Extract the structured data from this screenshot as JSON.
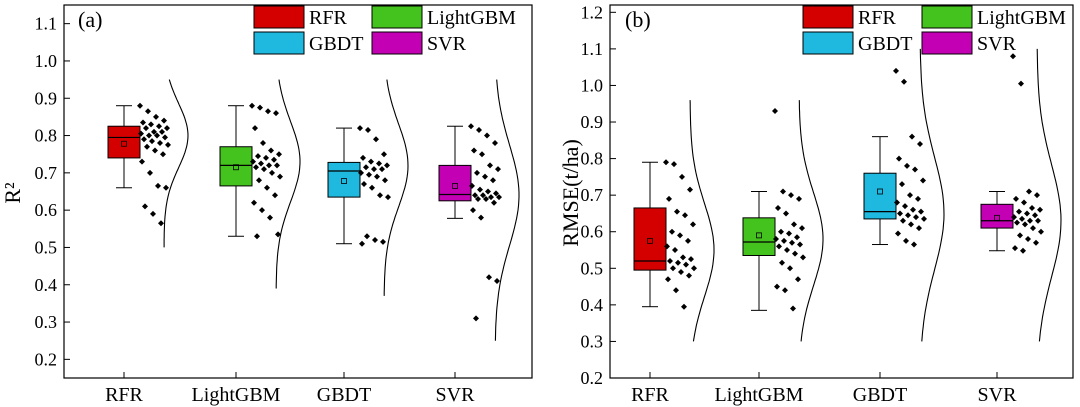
{
  "colors": {
    "RFR": "#d40000",
    "LightGBM": "#44c21d",
    "GBDT": "#1fb8de",
    "SVR": "#c400b4"
  },
  "legend": [
    "RFR",
    "LightGBM",
    "GBDT",
    "SVR"
  ],
  "chart_data": [
    {
      "type": "box",
      "panel_label": "(a)",
      "ylabel": "R²",
      "ylim": [
        0.15,
        1.15
      ],
      "yticks": [
        0.2,
        0.3,
        0.4,
        0.5,
        0.6,
        0.7,
        0.8,
        0.9,
        1.0,
        1.1
      ],
      "categories": [
        "RFR",
        "LightGBM",
        "GBDT",
        "SVR"
      ],
      "legend_placement": "top-right",
      "boxes": [
        {
          "name": "RFR",
          "whisker_low": 0.66,
          "q1": 0.74,
          "median": 0.795,
          "q3": 0.825,
          "whisker_high": 0.88,
          "mean": 0.778,
          "points": [
            0.88,
            0.865,
            0.85,
            0.84,
            0.835,
            0.83,
            0.825,
            0.82,
            0.82,
            0.81,
            0.81,
            0.805,
            0.8,
            0.8,
            0.795,
            0.79,
            0.785,
            0.78,
            0.775,
            0.77,
            0.76,
            0.75,
            0.73,
            0.7,
            0.665,
            0.66,
            0.61,
            0.59,
            0.565
          ],
          "density": {
            "low": 0.5,
            "high": 0.95,
            "mode": 0.8
          }
        },
        {
          "name": "LightGBM",
          "whisker_low": 0.53,
          "q1": 0.665,
          "median": 0.72,
          "q3": 0.77,
          "whisker_high": 0.88,
          "mean": 0.715,
          "points": [
            0.88,
            0.875,
            0.865,
            0.86,
            0.82,
            0.78,
            0.76,
            0.75,
            0.745,
            0.74,
            0.735,
            0.73,
            0.725,
            0.72,
            0.72,
            0.715,
            0.71,
            0.7,
            0.69,
            0.68,
            0.66,
            0.64,
            0.62,
            0.6,
            0.58,
            0.535,
            0.53
          ],
          "density": {
            "low": 0.39,
            "high": 0.95,
            "mode": 0.73
          }
        },
        {
          "name": "GBDT",
          "whisker_low": 0.51,
          "q1": 0.635,
          "median": 0.705,
          "q3": 0.728,
          "whisker_high": 0.82,
          "mean": 0.678,
          "points": [
            0.82,
            0.815,
            0.79,
            0.75,
            0.74,
            0.73,
            0.725,
            0.72,
            0.715,
            0.71,
            0.71,
            0.7,
            0.695,
            0.69,
            0.68,
            0.67,
            0.66,
            0.64,
            0.635,
            0.53,
            0.52,
            0.515,
            0.51
          ],
          "density": {
            "low": 0.37,
            "high": 0.95,
            "mode": 0.72
          }
        },
        {
          "name": "SVR",
          "whisker_low": 0.578,
          "q1": 0.625,
          "median": 0.642,
          "q3": 0.72,
          "whisker_high": 0.825,
          "mean": 0.665,
          "points": [
            0.825,
            0.815,
            0.8,
            0.78,
            0.76,
            0.75,
            0.72,
            0.71,
            0.7,
            0.69,
            0.68,
            0.665,
            0.655,
            0.65,
            0.645,
            0.64,
            0.64,
            0.635,
            0.635,
            0.63,
            0.63,
            0.62,
            0.6,
            0.58,
            0.42,
            0.41,
            0.31
          ],
          "density": {
            "low": 0.25,
            "high": 0.95,
            "mode": 0.64
          }
        }
      ]
    },
    {
      "type": "box",
      "panel_label": "(b)",
      "ylabel": "RMSE(t/ha)",
      "ylim": [
        0.2,
        1.22
      ],
      "yticks": [
        0.2,
        0.3,
        0.4,
        0.5,
        0.6,
        0.7,
        0.8,
        0.9,
        1.0,
        1.1,
        1.2
      ],
      "categories": [
        "RFR",
        "LightGBM",
        "GBDT",
        "SVR"
      ],
      "legend_placement": "top-right",
      "boxes": [
        {
          "name": "RFR",
          "whisker_low": 0.395,
          "q1": 0.495,
          "median": 0.52,
          "q3": 0.665,
          "whisker_high": 0.79,
          "mean": 0.575,
          "points": [
            0.79,
            0.785,
            0.75,
            0.715,
            0.69,
            0.655,
            0.645,
            0.62,
            0.6,
            0.59,
            0.575,
            0.56,
            0.55,
            0.53,
            0.525,
            0.52,
            0.515,
            0.51,
            0.5,
            0.5,
            0.49,
            0.48,
            0.47,
            0.44,
            0.395
          ],
          "density": {
            "low": 0.3,
            "high": 0.96,
            "mode": 0.55
          }
        },
        {
          "name": "LightGBM",
          "whisker_low": 0.385,
          "q1": 0.535,
          "median": 0.572,
          "q3": 0.638,
          "whisker_high": 0.71,
          "mean": 0.59,
          "points": [
            0.93,
            0.71,
            0.7,
            0.69,
            0.665,
            0.65,
            0.62,
            0.61,
            0.6,
            0.595,
            0.585,
            0.58,
            0.575,
            0.57,
            0.565,
            0.56,
            0.55,
            0.54,
            0.53,
            0.515,
            0.5,
            0.47,
            0.45,
            0.44,
            0.39
          ],
          "density": {
            "low": 0.3,
            "high": 0.96,
            "mode": 0.58
          }
        },
        {
          "name": "GBDT",
          "whisker_low": 0.565,
          "q1": 0.635,
          "median": 0.655,
          "q3": 0.76,
          "whisker_high": 0.86,
          "mean": 0.71,
          "points": [
            1.04,
            1.01,
            0.86,
            0.84,
            0.8,
            0.78,
            0.77,
            0.74,
            0.73,
            0.7,
            0.69,
            0.68,
            0.67,
            0.66,
            0.655,
            0.65,
            0.645,
            0.64,
            0.635,
            0.63,
            0.62,
            0.61,
            0.595,
            0.575,
            0.565
          ],
          "density": {
            "low": 0.3,
            "high": 1.1,
            "mode": 0.65
          }
        },
        {
          "name": "SVR",
          "whisker_low": 0.548,
          "q1": 0.61,
          "median": 0.63,
          "q3": 0.675,
          "whisker_high": 0.71,
          "mean": 0.638,
          "points": [
            1.08,
            1.005,
            0.71,
            0.7,
            0.69,
            0.68,
            0.665,
            0.66,
            0.655,
            0.65,
            0.645,
            0.64,
            0.635,
            0.63,
            0.63,
            0.625,
            0.62,
            0.61,
            0.6,
            0.59,
            0.58,
            0.57,
            0.555,
            0.548
          ],
          "density": {
            "low": 0.3,
            "high": 1.1,
            "mode": 0.63
          }
        }
      ]
    }
  ]
}
